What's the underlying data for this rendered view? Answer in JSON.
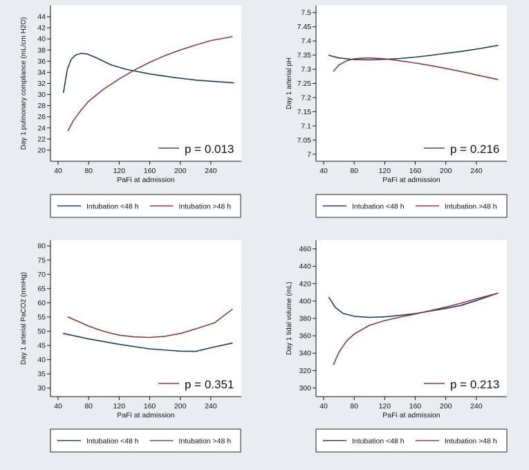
{
  "colors": {
    "background": "#e9edf2",
    "plot_background": "#ffffff",
    "intubation_lt48": "#1f3a5f",
    "intubation_gt48": "#8b3a3a",
    "axis": "#111111"
  },
  "legend": {
    "items": [
      {
        "label": "Intubation <48 h",
        "color": "#1f3a5f"
      },
      {
        "label": "Intubation >48 h",
        "color": "#8b3a3a"
      }
    ]
  },
  "chart_data": [
    {
      "type": "line",
      "position": "top-left",
      "xlabel": "PaFi at admission",
      "ylabel": "Day 1 pulmonary compliance (mL/cm H2O)",
      "xlim": [
        30,
        280
      ],
      "ylim": [
        18,
        46
      ],
      "xticks": [
        40,
        80,
        120,
        160,
        200,
        240
      ],
      "yticks": [
        20,
        22,
        24,
        26,
        28,
        30,
        32,
        34,
        36,
        38,
        40,
        42,
        44
      ],
      "annotation": "p = 0.013",
      "series": [
        {
          "name": "Intubation <48 h",
          "x": [
            47,
            52,
            57,
            63,
            70,
            78,
            90,
            110,
            130,
            160,
            190,
            220,
            270
          ],
          "y": [
            30.4,
            34.5,
            36.3,
            37.1,
            37.4,
            37.3,
            36.6,
            35.3,
            34.5,
            33.7,
            33.1,
            32.6,
            32.1
          ]
        },
        {
          "name": "Intubation >48 h",
          "x": [
            53,
            60,
            70,
            80,
            100,
            120,
            140,
            160,
            180,
            200,
            220,
            240,
            268
          ],
          "y": [
            23.5,
            25.3,
            27.2,
            28.8,
            31.0,
            32.8,
            34.4,
            35.8,
            37.0,
            38.0,
            38.9,
            39.7,
            40.4
          ]
        }
      ]
    },
    {
      "type": "line",
      "position": "top-right",
      "xlabel": "PaFi at admission",
      "ylabel": "Day 1 arterial pH",
      "xlim": [
        30,
        280
      ],
      "ylim": [
        6.975,
        7.525
      ],
      "xticks": [
        40,
        80,
        120,
        160,
        200,
        240
      ],
      "yticks": [
        "7",
        "7.05",
        "7.1",
        "7.15",
        "7.2",
        "7.25",
        "7.3",
        "7.35",
        "7.4",
        "7.45",
        "7.5"
      ],
      "annotation": "p = 0.216",
      "series": [
        {
          "name": "Intubation <48 h",
          "x": [
            47,
            60,
            80,
            100,
            120,
            140,
            160,
            180,
            200,
            220,
            240,
            268
          ],
          "y": [
            7.349,
            7.34,
            7.334,
            7.333,
            7.335,
            7.338,
            7.343,
            7.349,
            7.356,
            7.363,
            7.371,
            7.384
          ]
        },
        {
          "name": "Intubation >48 h",
          "x": [
            53,
            60,
            70,
            80,
            90,
            100,
            120,
            140,
            160,
            180,
            200,
            220,
            240,
            268
          ],
          "y": [
            7.293,
            7.315,
            7.33,
            7.337,
            7.339,
            7.34,
            7.337,
            7.33,
            7.322,
            7.313,
            7.303,
            7.292,
            7.28,
            7.264
          ]
        }
      ]
    },
    {
      "type": "line",
      "position": "bottom-left",
      "xlabel": "PaFi at admission",
      "ylabel": "Day 1 arterial PaCO2 (mmHg)",
      "xlim": [
        30,
        280
      ],
      "ylim": [
        27,
        82
      ],
      "xticks": [
        40,
        80,
        120,
        160,
        200,
        240
      ],
      "yticks": [
        30,
        35,
        40,
        45,
        50,
        55,
        60,
        65,
        70,
        75,
        80
      ],
      "annotation": "p = 0.351",
      "series": [
        {
          "name": "Intubation <48 h",
          "x": [
            47,
            80,
            120,
            160,
            200,
            220,
            245,
            268
          ],
          "y": [
            49.2,
            47.3,
            45.4,
            43.8,
            43.0,
            42.9,
            44.5,
            45.8
          ]
        },
        {
          "name": "Intubation >48 h",
          "x": [
            53,
            80,
            100,
            120,
            140,
            160,
            180,
            200,
            220,
            245,
            268
          ],
          "y": [
            55.0,
            51.8,
            49.9,
            48.6,
            48.0,
            47.8,
            48.2,
            49.2,
            50.8,
            53.0,
            57.7
          ]
        }
      ]
    },
    {
      "type": "line",
      "position": "bottom-right",
      "xlabel": "PaFi at admission",
      "ylabel": "Day 1 tidal volume (mL)",
      "xlim": [
        30,
        280
      ],
      "ylim": [
        290,
        470
      ],
      "xticks": [
        40,
        80,
        120,
        160,
        200,
        240
      ],
      "yticks": [
        300,
        320,
        340,
        360,
        380,
        400,
        420,
        440,
        460
      ],
      "annotation": "p = 0.213",
      "series": [
        {
          "name": "Intubation <48 h",
          "x": [
            47,
            55,
            65,
            80,
            100,
            120,
            140,
            160,
            180,
            200,
            220,
            240,
            268
          ],
          "y": [
            404,
            393,
            386,
            382.5,
            381.2,
            381.8,
            383.5,
            385.5,
            388.5,
            391.5,
            395,
            400.5,
            409
          ]
        },
        {
          "name": "Intubation >48 h",
          "x": [
            53,
            60,
            70,
            80,
            100,
            120,
            140,
            160,
            180,
            200,
            220,
            240,
            268
          ],
          "y": [
            327,
            341,
            354,
            362,
            372,
            377.5,
            381.5,
            385,
            389,
            393,
            397.5,
            402.5,
            409
          ]
        }
      ]
    }
  ]
}
